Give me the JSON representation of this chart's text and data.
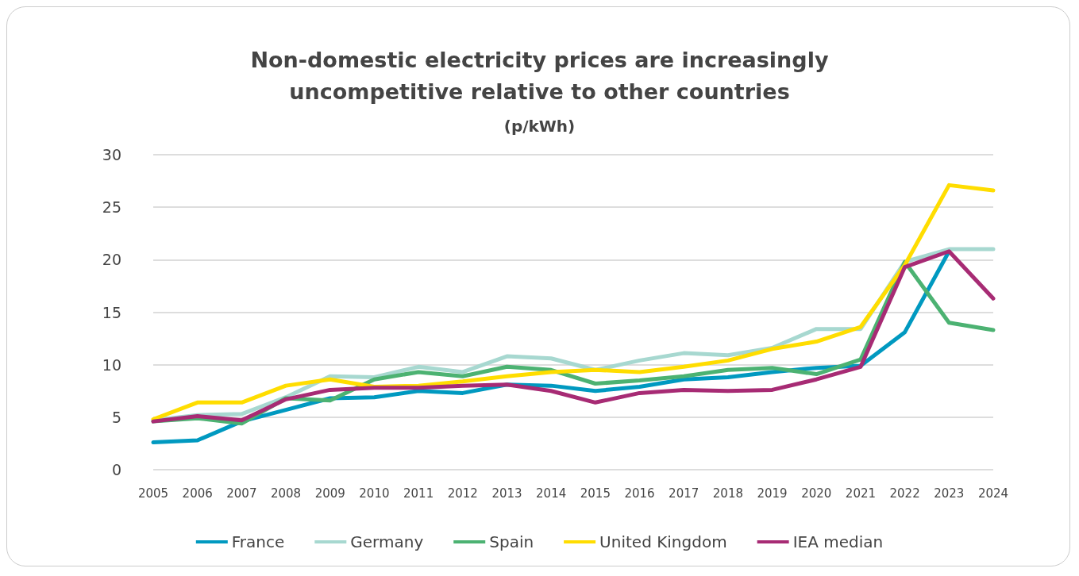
{
  "chart_data": {
    "type": "line",
    "title": "Non-domestic electricity prices are increasingly\nuncompetitive relative to other countries",
    "subtitle": "(p/kWh)",
    "categories": [
      "2005",
      "2006",
      "2007",
      "2008",
      "2009",
      "2010",
      "2011",
      "2012",
      "2013",
      "2014",
      "2015",
      "2016",
      "2017",
      "2018",
      "2019",
      "2020",
      "2021",
      "2022",
      "2023",
      "2024"
    ],
    "series": [
      {
        "name": "France",
        "color": "#0099c0",
        "values": [
          2.6,
          2.8,
          4.6,
          5.7,
          6.8,
          6.9,
          7.5,
          7.3,
          8.1,
          8.0,
          7.5,
          7.9,
          8.6,
          8.8,
          9.3,
          9.7,
          9.9,
          13.1,
          20.8,
          null
        ]
      },
      {
        "name": "Germany",
        "color": "#a7d8d0",
        "values": [
          4.7,
          5.2,
          5.3,
          6.9,
          8.9,
          8.8,
          9.8,
          9.3,
          10.8,
          10.6,
          9.5,
          10.4,
          11.1,
          10.9,
          11.6,
          13.4,
          13.4,
          19.8,
          21.0,
          21.0
        ]
      },
      {
        "name": "Spain",
        "color": "#4cb272",
        "values": [
          4.6,
          4.9,
          4.4,
          6.8,
          6.6,
          8.6,
          9.3,
          8.9,
          9.8,
          9.5,
          8.2,
          8.5,
          8.9,
          9.5,
          9.7,
          9.1,
          10.5,
          19.8,
          14.0,
          13.3
        ]
      },
      {
        "name": "United Kingdom",
        "color": "#ffdd00",
        "values": [
          4.8,
          6.4,
          6.4,
          8.0,
          8.6,
          7.9,
          8.0,
          8.4,
          8.9,
          9.3,
          9.5,
          9.3,
          9.8,
          10.4,
          11.5,
          12.2,
          13.6,
          19.5,
          27.1,
          26.6
        ]
      },
      {
        "name": "IEA median",
        "color": "#a72b74",
        "values": [
          4.6,
          5.1,
          4.7,
          6.7,
          7.6,
          7.8,
          7.8,
          8.0,
          8.1,
          7.5,
          6.4,
          7.3,
          7.6,
          7.5,
          7.6,
          8.6,
          9.8,
          19.3,
          20.8,
          16.3
        ]
      }
    ],
    "ylim": [
      0,
      30
    ],
    "yticks": [
      0,
      5,
      10,
      15,
      20,
      25,
      30
    ],
    "grid": "y",
    "legend": "bottom",
    "marker": "none",
    "line_style": "solid"
  }
}
